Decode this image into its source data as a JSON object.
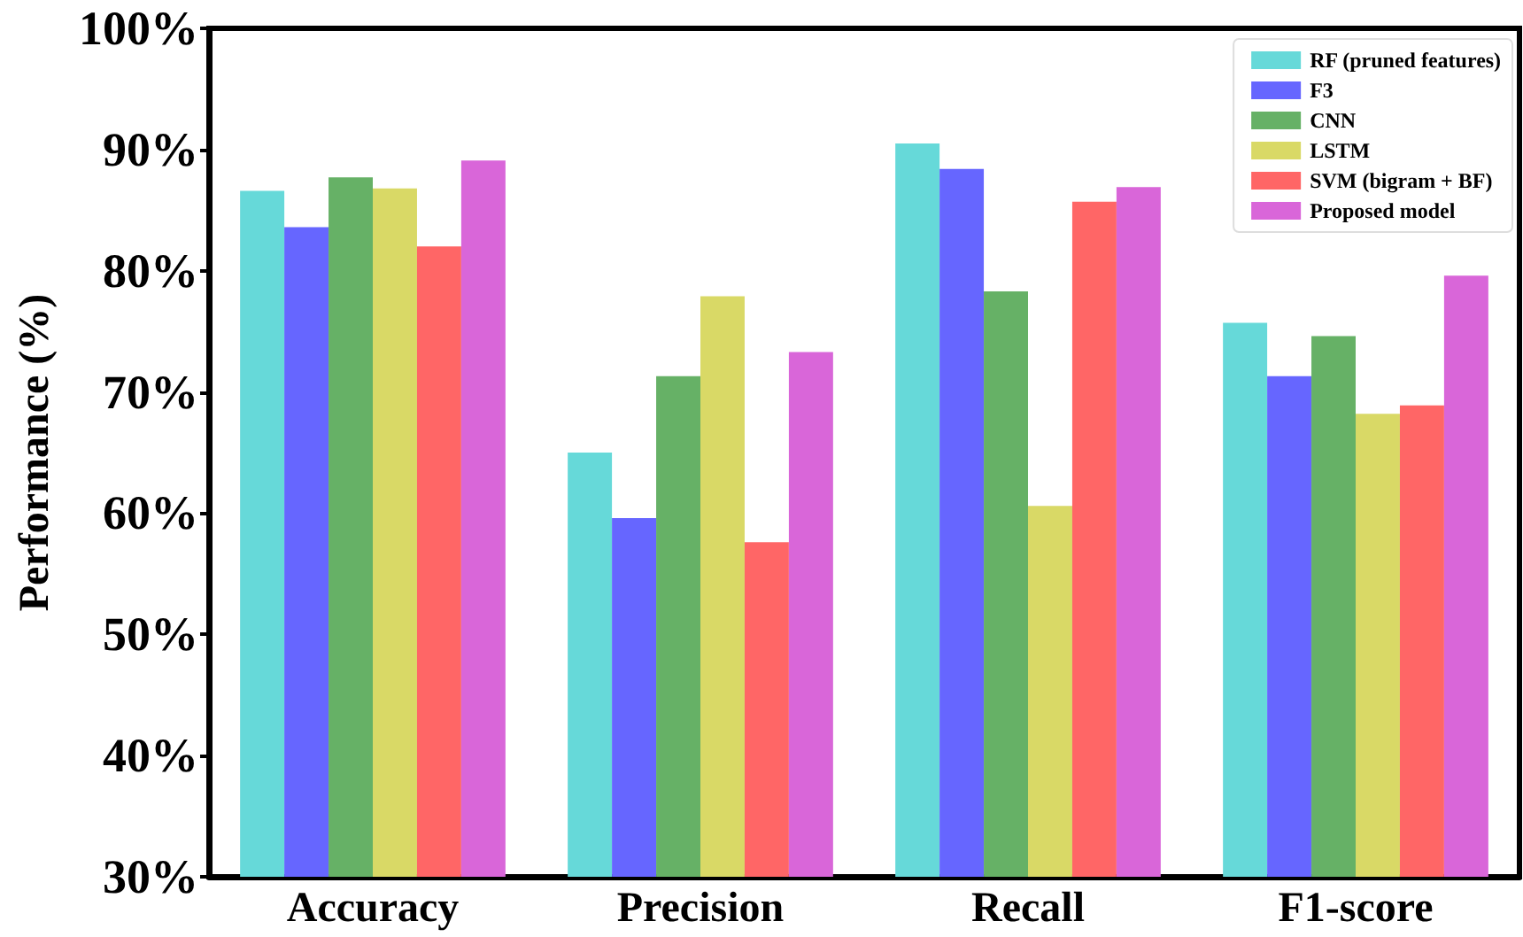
{
  "chart_data": {
    "type": "bar",
    "ylabel": "Performance (%)",
    "categories": [
      "Accuracy",
      "Precision",
      "Recall",
      "F1-score"
    ],
    "series": [
      {
        "name": "RF (pruned features)",
        "color": "#66d9d9",
        "values": [
          86.6,
          65.0,
          90.5,
          75.7
        ]
      },
      {
        "name": "F3",
        "color": "#6666ff",
        "values": [
          83.6,
          59.6,
          88.4,
          71.3
        ]
      },
      {
        "name": "CNN",
        "color": "#66b166",
        "values": [
          87.7,
          71.3,
          78.3,
          74.6
        ]
      },
      {
        "name": "LSTM",
        "color": "#d9d966",
        "values": [
          86.8,
          77.9,
          60.6,
          68.2
        ]
      },
      {
        "name": "SVM (bigram + BF)",
        "color": "#ff6666",
        "values": [
          82.0,
          57.6,
          85.7,
          68.9
        ]
      },
      {
        "name": "Proposed model",
        "color": "#d966d9",
        "values": [
          89.1,
          73.3,
          86.9,
          79.6
        ]
      }
    ],
    "ylim": [
      30,
      100
    ],
    "yticks": [
      {
        "value": 30,
        "label": "30%"
      },
      {
        "value": 40,
        "label": "40%"
      },
      {
        "value": 50,
        "label": "50%"
      },
      {
        "value": 60,
        "label": "60%"
      },
      {
        "value": 70,
        "label": "70%"
      },
      {
        "value": 80,
        "label": "80%"
      },
      {
        "value": 90,
        "label": "90%"
      },
      {
        "value": 100,
        "label": "100%"
      }
    ],
    "grid": false,
    "legend": "top right"
  }
}
